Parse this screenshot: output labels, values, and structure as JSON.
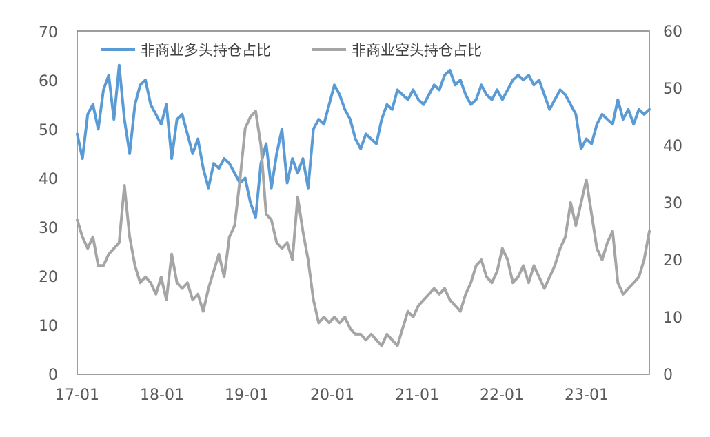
{
  "chart_data": {
    "type": "line",
    "x_ticks": [
      "17-01",
      "18-01",
      "19-01",
      "20-01",
      "21-01",
      "22-01",
      "23-01"
    ],
    "x_range": [
      "2017-01",
      "2023-09"
    ],
    "y_left": {
      "min": 0,
      "max": 70,
      "ticks": [
        "0",
        "10",
        "20",
        "30",
        "40",
        "50",
        "60",
        "70"
      ]
    },
    "y_right": {
      "min": 0,
      "max": 60,
      "ticks": [
        "0",
        "10",
        "20",
        "30",
        "40",
        "50",
        "60"
      ]
    },
    "grid": false,
    "legend_position": "top-left",
    "series": [
      {
        "name": "非商业多头持仓占比",
        "axis": "left",
        "color": "#5B9BD5",
        "points": [
          [
            "2017-01",
            49
          ],
          [
            "2017-02",
            44
          ],
          [
            "2017-03",
            53
          ],
          [
            "2017-04",
            55
          ],
          [
            "2017-05",
            50
          ],
          [
            "2017-06",
            58
          ],
          [
            "2017-07",
            61
          ],
          [
            "2017-08",
            52
          ],
          [
            "2017-09",
            63
          ],
          [
            "2017-10",
            52
          ],
          [
            "2017-11",
            45
          ],
          [
            "2017-12",
            55
          ],
          [
            "2017-13",
            59
          ],
          [
            "2017-14",
            60
          ],
          [
            "2017-15",
            55
          ],
          [
            "2017-16",
            53
          ],
          [
            "2017-17",
            51
          ],
          [
            "2017-18",
            55
          ],
          [
            "2017-19",
            44
          ],
          [
            "2017-20",
            52
          ],
          [
            "2017-21",
            53
          ],
          [
            "2017-22",
            49
          ],
          [
            "2017-23",
            45
          ],
          [
            "2017-24",
            48
          ],
          [
            "2017-25",
            42
          ],
          [
            "2017-26",
            38
          ],
          [
            "2017-27",
            43
          ],
          [
            "2017-28",
            42
          ],
          [
            "2017-29",
            44
          ],
          [
            "2017-30",
            43
          ],
          [
            "2017-31",
            41
          ],
          [
            "2017-32",
            39
          ],
          [
            "2017-33",
            40
          ],
          [
            "2017-34",
            35
          ],
          [
            "2017-35",
            32
          ],
          [
            "2017-36",
            43
          ],
          [
            "2017-37",
            47
          ],
          [
            "2017-38",
            38
          ],
          [
            "2017-39",
            45
          ],
          [
            "2017-40",
            50
          ],
          [
            "2017-41",
            39
          ],
          [
            "2017-42",
            44
          ],
          [
            "2017-43",
            41
          ],
          [
            "2017-44",
            44
          ],
          [
            "2017-45",
            38
          ],
          [
            "2017-46",
            50
          ],
          [
            "2017-47",
            52
          ],
          [
            "2017-48",
            51
          ],
          [
            "2017-49",
            55
          ],
          [
            "2017-50",
            59
          ],
          [
            "2017-51",
            57
          ],
          [
            "2017-52",
            54
          ],
          [
            "2017-53",
            52
          ],
          [
            "2017-54",
            48
          ],
          [
            "2017-55",
            46
          ],
          [
            "2017-56",
            49
          ],
          [
            "2017-57",
            48
          ],
          [
            "2017-58",
            47
          ],
          [
            "2017-59",
            52
          ],
          [
            "2017-60",
            55
          ],
          [
            "2017-61",
            54
          ],
          [
            "2017-62",
            58
          ],
          [
            "2017-63",
            57
          ],
          [
            "2017-64",
            56
          ],
          [
            "2017-65",
            58
          ],
          [
            "2017-66",
            56
          ],
          [
            "2017-67",
            55
          ],
          [
            "2017-68",
            57
          ],
          [
            "2017-69",
            59
          ],
          [
            "2017-70",
            58
          ],
          [
            "2017-71",
            61
          ],
          [
            "2017-72",
            62
          ],
          [
            "2017-73",
            59
          ],
          [
            "2017-74",
            60
          ],
          [
            "2017-75",
            57
          ],
          [
            "2017-76",
            55
          ],
          [
            "2017-77",
            56
          ],
          [
            "2017-78",
            59
          ],
          [
            "2017-79",
            57
          ],
          [
            "2017-80",
            56
          ],
          [
            "2017-81",
            58
          ],
          [
            "2017-82",
            56
          ],
          [
            "2017-83",
            58
          ],
          [
            "2017-84",
            60
          ],
          [
            "2017-85",
            61
          ],
          [
            "2017-86",
            60
          ],
          [
            "2017-87",
            61
          ],
          [
            "2017-88",
            59
          ],
          [
            "2017-89",
            60
          ],
          [
            "2017-90",
            57
          ],
          [
            "2017-91",
            54
          ],
          [
            "2017-92",
            56
          ],
          [
            "2017-93",
            58
          ],
          [
            "2017-94",
            57
          ],
          [
            "2017-95",
            55
          ],
          [
            "2017-96",
            53
          ],
          [
            "2017-97",
            46
          ],
          [
            "2017-98",
            48
          ],
          [
            "2017-99",
            47
          ],
          [
            "2017-100",
            51
          ],
          [
            "2017-101",
            53
          ],
          [
            "2017-102",
            52
          ],
          [
            "2017-103",
            51
          ],
          [
            "2017-104",
            56
          ],
          [
            "2017-105",
            52
          ],
          [
            "2017-106",
            54
          ],
          [
            "2017-107",
            51
          ],
          [
            "2017-108",
            54
          ],
          [
            "2017-109",
            53
          ],
          [
            "2017-110",
            54
          ]
        ]
      },
      {
        "name": "非商业空头持仓占比",
        "axis": "right",
        "color": "#A5A5A5",
        "points": [
          [
            "2017-01",
            27
          ],
          [
            "2017-02",
            24
          ],
          [
            "2017-03",
            22
          ],
          [
            "2017-04",
            24
          ],
          [
            "2017-05",
            19
          ],
          [
            "2017-06",
            19
          ],
          [
            "2017-07",
            21
          ],
          [
            "2017-08",
            22
          ],
          [
            "2017-09",
            23
          ],
          [
            "2017-10",
            33
          ],
          [
            "2017-11",
            24
          ],
          [
            "2017-12",
            19
          ],
          [
            "2017-13",
            16
          ],
          [
            "2017-14",
            17
          ],
          [
            "2017-15",
            16
          ],
          [
            "2017-16",
            14
          ],
          [
            "2017-17",
            17
          ],
          [
            "2017-18",
            13
          ],
          [
            "2017-19",
            21
          ],
          [
            "2017-20",
            16
          ],
          [
            "2017-21",
            15
          ],
          [
            "2017-22",
            16
          ],
          [
            "2017-23",
            13
          ],
          [
            "2017-24",
            14
          ],
          [
            "2017-25",
            11
          ],
          [
            "2017-26",
            15
          ],
          [
            "2017-27",
            18
          ],
          [
            "2017-28",
            21
          ],
          [
            "2017-29",
            17
          ],
          [
            "2017-30",
            24
          ],
          [
            "2017-31",
            26
          ],
          [
            "2017-32",
            34
          ],
          [
            "2017-33",
            43
          ],
          [
            "2017-34",
            45
          ],
          [
            "2017-35",
            46
          ],
          [
            "2017-36",
            40
          ],
          [
            "2017-37",
            28
          ],
          [
            "2017-38",
            27
          ],
          [
            "2017-39",
            23
          ],
          [
            "2017-40",
            22
          ],
          [
            "2017-41",
            23
          ],
          [
            "2017-42",
            20
          ],
          [
            "2017-43",
            31
          ],
          [
            "2017-44",
            25
          ],
          [
            "2017-45",
            20
          ],
          [
            "2017-46",
            13
          ],
          [
            "2017-47",
            9
          ],
          [
            "2017-48",
            10
          ],
          [
            "2017-49",
            9
          ],
          [
            "2017-50",
            10
          ],
          [
            "2017-51",
            9
          ],
          [
            "2017-52",
            10
          ],
          [
            "2017-53",
            8
          ],
          [
            "2017-54",
            7
          ],
          [
            "2017-55",
            7
          ],
          [
            "2017-56",
            6
          ],
          [
            "2017-57",
            7
          ],
          [
            "2017-58",
            6
          ],
          [
            "2017-59",
            5
          ],
          [
            "2017-60",
            7
          ],
          [
            "2017-61",
            6
          ],
          [
            "2017-62",
            5
          ],
          [
            "2017-63",
            8
          ],
          [
            "2017-64",
            11
          ],
          [
            "2017-65",
            10
          ],
          [
            "2017-66",
            12
          ],
          [
            "2017-67",
            13
          ],
          [
            "2017-68",
            14
          ],
          [
            "2017-69",
            15
          ],
          [
            "2017-70",
            14
          ],
          [
            "2017-71",
            15
          ],
          [
            "2017-72",
            13
          ],
          [
            "2017-73",
            12
          ],
          [
            "2017-74",
            11
          ],
          [
            "2017-75",
            14
          ],
          [
            "2017-76",
            16
          ],
          [
            "2017-77",
            19
          ],
          [
            "2017-78",
            20
          ],
          [
            "2017-79",
            17
          ],
          [
            "2017-80",
            16
          ],
          [
            "2017-81",
            18
          ],
          [
            "2017-82",
            22
          ],
          [
            "2017-83",
            20
          ],
          [
            "2017-84",
            16
          ],
          [
            "2017-85",
            17
          ],
          [
            "2017-86",
            19
          ],
          [
            "2017-87",
            16
          ],
          [
            "2017-88",
            19
          ],
          [
            "2017-89",
            17
          ],
          [
            "2017-90",
            15
          ],
          [
            "2017-91",
            17
          ],
          [
            "2017-92",
            19
          ],
          [
            "2017-93",
            22
          ],
          [
            "2017-94",
            24
          ],
          [
            "2017-95",
            30
          ],
          [
            "2017-96",
            26
          ],
          [
            "2017-97",
            30
          ],
          [
            "2017-98",
            34
          ],
          [
            "2017-99",
            28
          ],
          [
            "2017-100",
            22
          ],
          [
            "2017-101",
            20
          ],
          [
            "2017-102",
            23
          ],
          [
            "2017-103",
            25
          ],
          [
            "2017-104",
            16
          ],
          [
            "2017-105",
            14
          ],
          [
            "2017-106",
            15
          ],
          [
            "2017-107",
            16
          ],
          [
            "2017-108",
            17
          ],
          [
            "2017-109",
            20
          ],
          [
            "2017-110",
            25
          ]
        ]
      }
    ]
  }
}
